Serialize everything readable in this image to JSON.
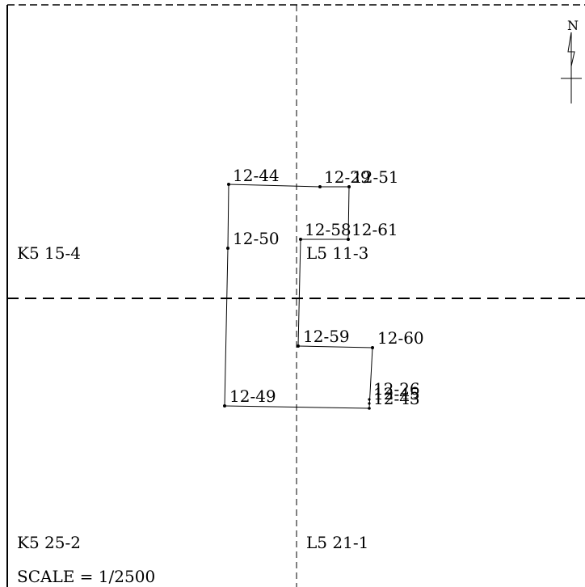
{
  "map": {
    "north_label": "N",
    "scale_label": "SCALE = 1/2500",
    "sheets": [
      {
        "id": "sheet-k5-15-4",
        "label": "K5 15-4"
      },
      {
        "id": "sheet-l5-11-3",
        "label": "L5 11-3"
      },
      {
        "id": "sheet-k5-25-2",
        "label": "K5 25-2"
      },
      {
        "id": "sheet-l5-21-1",
        "label": "L5 21-1"
      }
    ],
    "points": [
      {
        "label": "12-44"
      },
      {
        "label": "12-29"
      },
      {
        "label": "12-51"
      },
      {
        "label": "12-58"
      },
      {
        "label": "12-61"
      },
      {
        "label": "12-50"
      },
      {
        "label": "12-59"
      },
      {
        "label": "12-60"
      },
      {
        "label": "12-49"
      },
      {
        "label": "12-26"
      },
      {
        "label": "12-45"
      },
      {
        "label": "12-43"
      }
    ],
    "colors": {
      "line": "#000000",
      "background": "#ffffff"
    }
  }
}
